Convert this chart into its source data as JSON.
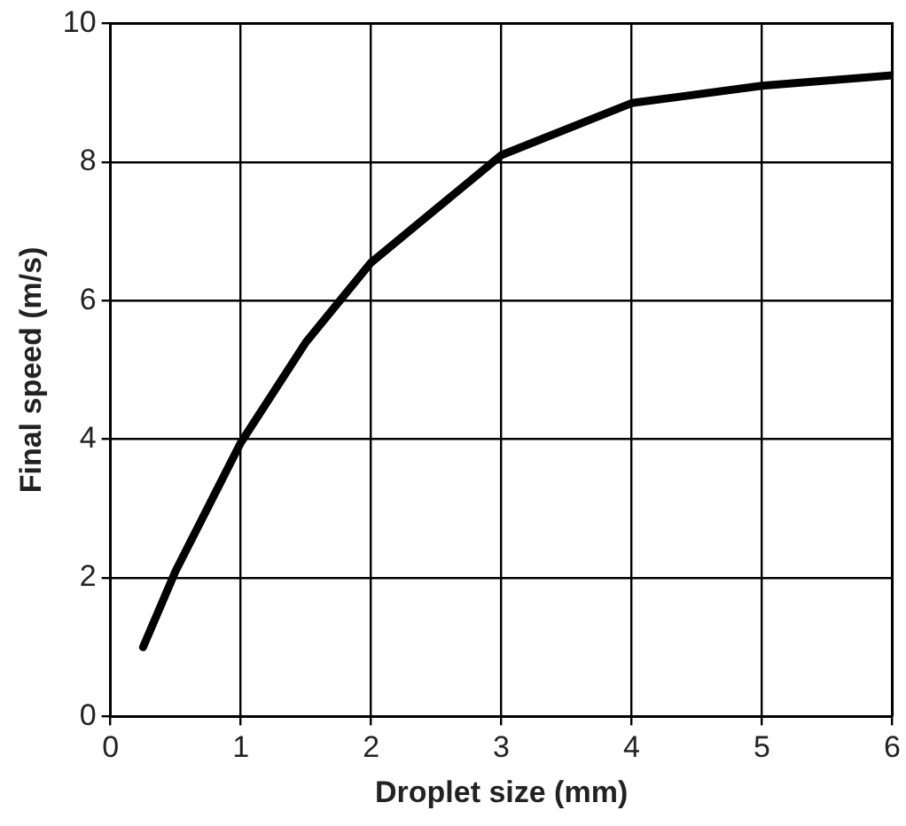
{
  "chart_data": {
    "type": "line",
    "xlabel": "Droplet size (mm)",
    "ylabel": "Final speed (m/s)",
    "x": [
      0.25,
      0.5,
      1,
      1.5,
      2,
      3,
      4,
      5,
      6
    ],
    "series": [
      {
        "color": "#000000",
        "values": [
          1.0,
          2.1,
          3.95,
          5.4,
          6.55,
          8.1,
          8.85,
          9.1,
          9.25
        ]
      }
    ],
    "xlim": [
      0,
      6
    ],
    "xticks": [
      0,
      1,
      2,
      3,
      4,
      5,
      6
    ],
    "ylim": [
      0,
      10
    ],
    "yticks": [
      0,
      2,
      4,
      6,
      8,
      10
    ],
    "grid": true,
    "legend": false,
    "marker": "none",
    "line_style": "solid"
  }
}
